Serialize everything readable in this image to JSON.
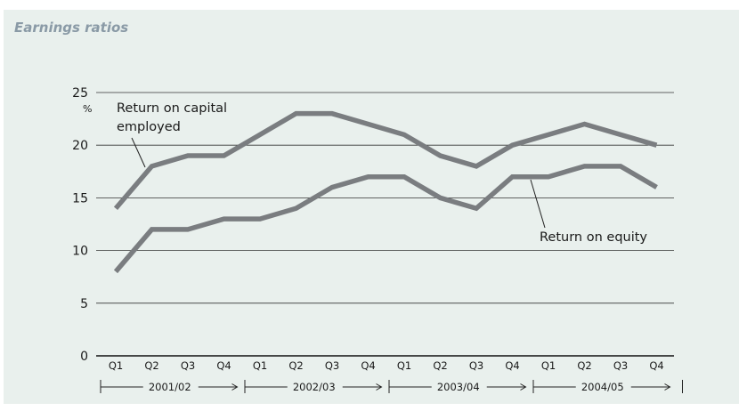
{
  "chart_data": {
    "type": "line",
    "title": "Earnings ratios",
    "ylabel": "%",
    "ylim": [
      0,
      25
    ],
    "yticks": [
      0,
      5,
      10,
      15,
      20,
      25
    ],
    "grid": true,
    "categories": [
      "Q1",
      "Q2",
      "Q3",
      "Q4",
      "Q1",
      "Q2",
      "Q3",
      "Q4",
      "Q1",
      "Q2",
      "Q3",
      "Q4",
      "Q1",
      "Q2",
      "Q3",
      "Q4"
    ],
    "years": [
      "2001/02",
      "2002/03",
      "2003/04",
      "2004/05"
    ],
    "series": [
      {
        "name": "Return on capital employed",
        "label_lines": [
          "Return on capital",
          "employed"
        ],
        "values": [
          14,
          18,
          19,
          19,
          21,
          23,
          23,
          22,
          21,
          19,
          18,
          20,
          21,
          22,
          21,
          20
        ]
      },
      {
        "name": "Return on equity",
        "label_lines": [
          "Return on equity"
        ],
        "values": [
          8,
          12,
          12,
          13,
          13,
          14,
          16,
          17,
          17,
          15,
          14,
          17,
          17,
          18,
          18,
          16
        ]
      }
    ],
    "line_color": "#7a7d80"
  }
}
